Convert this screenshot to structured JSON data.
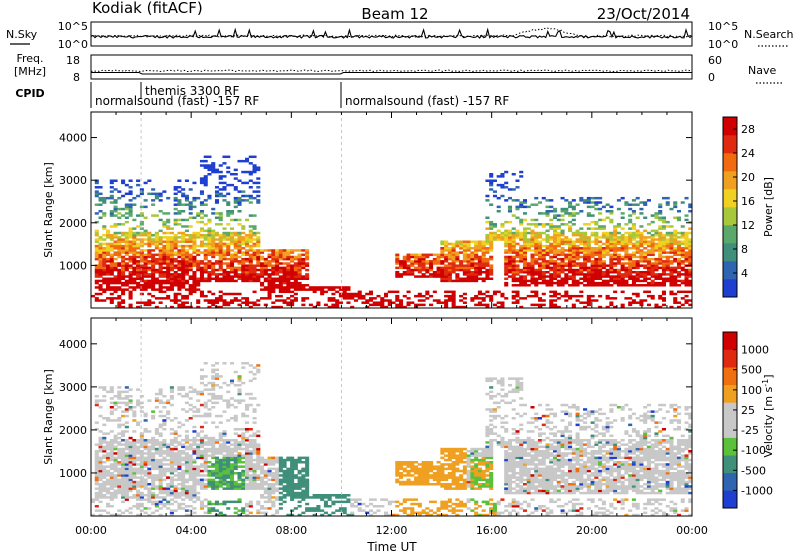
{
  "header": {
    "title_left": "Kodiak (fitACF)",
    "title_center": "Beam 12",
    "title_right": "23/Oct/2014"
  },
  "strips": {
    "nsky_label": "N.Sky",
    "nsearch_label": "N.Search",
    "freq_label_line1": "Freq.",
    "freq_label_line2": "[MHz]",
    "nave_label": "Nave",
    "cpid_label": "CPID",
    "noise_left_ticks": [
      "10^5",
      "10^0"
    ],
    "noise_right_ticks": [
      "10^5",
      "10^0"
    ],
    "freq_ticks": [
      "18",
      "8"
    ],
    "nave_ticks": [
      "60",
      "0"
    ],
    "cpid_texts": [
      "normalsound (fast) -157 RF",
      "themis 3300 RF",
      "normalsound (fast) -157 RF"
    ]
  },
  "colors": {
    "power_scale": [
      "#1f3fd0",
      "#2f64b0",
      "#3f8f7a",
      "#5aa86a",
      "#a8c83c",
      "#f0d020",
      "#f0a020",
      "#f06a10",
      "#e02a10",
      "#d00000"
    ],
    "velocity_scale": [
      "#1f3fd0",
      "#2f64b0",
      "#3f8f7a",
      "#5bc03a",
      "#c8c8c8",
      "#c8c8c8",
      "#f0a020",
      "#f07010",
      "#e02a10",
      "#d00000"
    ]
  },
  "chart_data": [
    {
      "type": "heatmap",
      "title": "",
      "xlabel": "",
      "ylabel": "Slant Range [km]",
      "xlim_hours": [
        0,
        24
      ],
      "ylim_km": [
        0,
        4600
      ],
      "x_ticks": [
        "00:00",
        "04:00",
        "08:00",
        "12:00",
        "16:00",
        "20:00",
        "00:00"
      ],
      "y_ticks": [
        "1000",
        "2000",
        "3000",
        "4000"
      ],
      "colorbar": {
        "label": "Power [dB]",
        "ticks": [
          "4",
          "8",
          "12",
          "16",
          "20",
          "24",
          "28"
        ],
        "range": [
          0,
          30
        ]
      }
    },
    {
      "type": "heatmap",
      "title": "",
      "xlabel": "Time UT",
      "ylabel": "Slant Range [km]",
      "xlim_hours": [
        0,
        24
      ],
      "ylim_km": [
        0,
        4600
      ],
      "x_ticks": [
        "00:00",
        "04:00",
        "08:00",
        "12:00",
        "16:00",
        "20:00",
        "00:00"
      ],
      "y_ticks": [
        "1000",
        "2000",
        "3000",
        "4000"
      ],
      "colorbar": {
        "label": "Velocity [m s^-1]",
        "ticks": [
          "1000",
          "500",
          "100",
          "25",
          "-25",
          "-100",
          "-500",
          "-1000"
        ]
      }
    }
  ],
  "ui": {
    "xlabel": "Time UT",
    "power_cbar_label": "Power [dB]",
    "velocity_cbar_label": "Velocity [m s",
    "velocity_cbar_sup": "-1",
    "velocity_cbar_close": "]"
  }
}
